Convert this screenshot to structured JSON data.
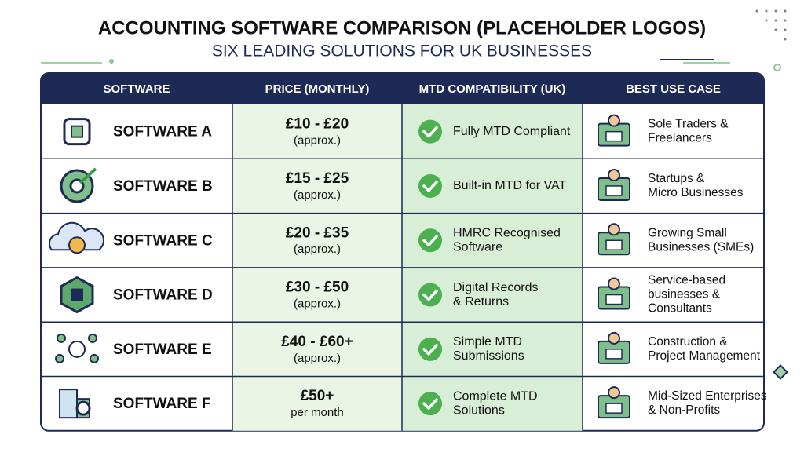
{
  "header": {
    "title": "ACCOUNTING SOFTWARE COMPARISON (PLACEHOLDER LOGOS)",
    "subtitle": "SIX LEADING SOLUTIONS FOR UK BUSINESSES"
  },
  "table": {
    "columns": [
      "SOFTWARE",
      "PRICE (MONTHLY)",
      "MTD COMPATIBILITY (UK)",
      "BEST USE CASE"
    ],
    "rows": [
      {
        "software": "SOFTWARE A",
        "price": "£10 - £20",
        "price_note": "(approx.)",
        "mtd": [
          "Fully MTD Compliant"
        ],
        "use_case": [
          "Sole Traders &",
          "Freelancers"
        ]
      },
      {
        "software": "SOFTWARE B",
        "price": "£15 - £25",
        "price_note": "(approx.)",
        "mtd": [
          "Built-in MTD for VAT"
        ],
        "use_case": [
          "Startups &",
          "Micro Businesses"
        ]
      },
      {
        "software": "SOFTWARE C",
        "price": "£20 - £35",
        "price_note": "(approx.)",
        "mtd": [
          "HMRC Recognised",
          "Software"
        ],
        "use_case": [
          "Growing Small",
          "Businesses (SMEs)"
        ]
      },
      {
        "software": "SOFTWARE D",
        "price": "£30 - £50",
        "price_note": "(approx.)",
        "mtd": [
          "Digital Records",
          "& Returns"
        ],
        "use_case": [
          "Service-based",
          "businesses &",
          "Consultants"
        ]
      },
      {
        "software": "SOFTWARE E",
        "price": "£40 - £60+",
        "price_note": "(approx.)",
        "mtd": [
          "Simple MTD",
          "Submissions"
        ],
        "use_case": [
          "Construction &",
          "Project Management"
        ]
      },
      {
        "software": "SOFTWARE F",
        "price": "£50+",
        "price_note": "per month",
        "mtd": [
          "Complete MTD",
          "Solutions"
        ],
        "use_case": [
          "Mid-Sized Enterprises",
          "& Non-Profits"
        ]
      }
    ]
  }
}
